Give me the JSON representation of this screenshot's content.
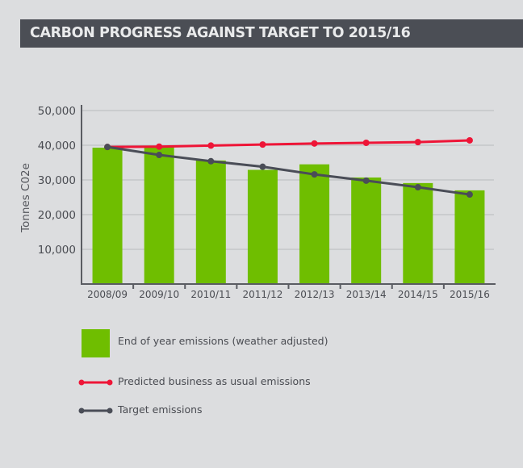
{
  "title": "CARBON PROGRESS AGAINST TARGET TO 2015/16",
  "colors": {
    "background": "#dcdddf",
    "title_bar": "#4b4e55",
    "title_text": "#e9eaeb",
    "bar": "#6fbe00",
    "bau_line": "#ee1537",
    "target_line": "#4a4d57",
    "axis": "#5a5c62",
    "grid": "#b9babd"
  },
  "chart_data": {
    "type": "bar",
    "title": "CARBON PROGRESS AGAINST TARGET TO 2015/16",
    "xlabel": "",
    "ylabel": "Tonnes C02e",
    "ylim": [
      0,
      50000
    ],
    "yticks": [
      10000,
      20000,
      30000,
      40000,
      50000
    ],
    "ytick_labels": [
      "10,000",
      "20,000",
      "30,000",
      "40,000",
      "50,000"
    ],
    "grid": true,
    "legend_position": "bottom-left",
    "categories": [
      "2008/09",
      "2009/10",
      "2010/11",
      "2011/12",
      "2012/13",
      "2013/14",
      "2014/15",
      "2015/16"
    ],
    "series": [
      {
        "name": "End of year emissions (weather adjusted)",
        "type": "bar",
        "values": [
          39300,
          39500,
          35600,
          32900,
          34500,
          30700,
          29100,
          27000
        ]
      },
      {
        "name": "Predicted business as usual emissions",
        "type": "line",
        "values": [
          39500,
          39600,
          39900,
          40200,
          40500,
          40700,
          40900,
          41400
        ]
      },
      {
        "name": "Target emissions",
        "type": "line",
        "values": [
          39500,
          37200,
          35400,
          33800,
          31600,
          29800,
          27900,
          25800
        ]
      }
    ]
  }
}
